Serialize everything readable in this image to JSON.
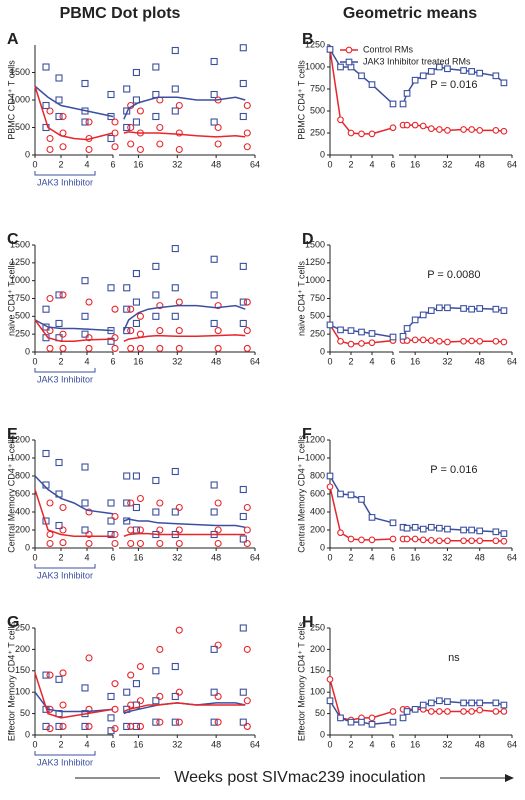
{
  "headers": [
    "PBMC Dot plots",
    "Geometric means"
  ],
  "footer": "Weeks post SIVmac239 inoculation",
  "chart_data": [
    {
      "type": "dot-plot",
      "panel": "A",
      "ylabel": "PBMC CD4⁺ T cells",
      "annotation": "JAK3 Inhibitor",
      "xlim": [
        0,
        64
      ],
      "x_break": [
        6,
        8
      ],
      "xticks": [
        0,
        2,
        4,
        6,
        16,
        32,
        48,
        64
      ],
      "ylim": [
        0,
        2000
      ],
      "yticks": [
        0,
        500,
        1000,
        1500
      ],
      "points_x": [
        1,
        1,
        1,
        2,
        2,
        2,
        4,
        4,
        4,
        6,
        6,
        6,
        12,
        12,
        12,
        16,
        16,
        16,
        24,
        24,
        24,
        32,
        32,
        32,
        48,
        48,
        48,
        60,
        60,
        60
      ],
      "x": [
        0,
        1,
        2,
        3,
        4,
        6,
        8,
        10,
        12,
        16,
        20,
        24,
        32,
        40,
        48,
        56,
        60
      ],
      "series": [
        {
          "color": "#3b4fa0",
          "marker": "square",
          "points": [
            1600,
            900,
            500,
            1400,
            1000,
            700,
            1300,
            800,
            600,
            1100,
            700,
            300,
            1200,
            800,
            500,
            1500,
            1000,
            600,
            1600,
            1100,
            700,
            1900,
            1200,
            800,
            1700,
            1100,
            600,
            1950,
            1300,
            700
          ],
          "values": [
            1250,
            1050,
            900,
            850,
            800,
            700,
            null,
            650,
            850,
            950,
            1000,
            1050,
            1050,
            1000,
            1000,
            1050,
            1000
          ]
        },
        {
          "color": "#e8252b",
          "marker": "circle",
          "points": [
            800,
            300,
            100,
            700,
            400,
            150,
            600,
            300,
            100,
            600,
            400,
            150,
            900,
            500,
            200,
            800,
            400,
            100,
            1000,
            500,
            200,
            900,
            400,
            100,
            1000,
            500,
            200,
            900,
            400,
            150
          ],
          "values": [
            1250,
            500,
            350,
            300,
            280,
            400,
            null,
            400,
            420,
            400,
            400,
            400,
            380,
            350,
            330,
            350,
            330
          ]
        }
      ]
    },
    {
      "type": "line",
      "panel": "B",
      "ylabel": "PBMC CD4⁺ T cells",
      "annotation": "P = 0.016",
      "legend": true,
      "xlim": [
        0,
        64
      ],
      "x_break": [
        6,
        8
      ],
      "xticks": [
        0,
        2,
        4,
        6,
        16,
        32,
        48,
        64
      ],
      "ylim": [
        0,
        1250
      ],
      "yticks": [
        0,
        250,
        500,
        750,
        1000,
        1250
      ],
      "x": [
        0,
        1,
        2,
        3,
        4,
        6,
        8,
        10,
        12,
        16,
        20,
        24,
        28,
        32,
        40,
        44,
        48,
        56,
        60
      ],
      "series": [
        {
          "name": "Control RMs",
          "color": "#e8252b",
          "marker": "circle",
          "values": [
            1200,
            400,
            250,
            240,
            240,
            310,
            null,
            340,
            340,
            340,
            330,
            300,
            290,
            280,
            290,
            290,
            280,
            280,
            270
          ]
        },
        {
          "name": "JAK3 Inhibitor treated RMs",
          "color": "#3b4fa0",
          "marker": "square",
          "values": [
            1200,
            1000,
            1000,
            900,
            800,
            580,
            null,
            580,
            700,
            850,
            900,
            950,
            1000,
            980,
            960,
            950,
            930,
            900,
            820
          ]
        }
      ]
    },
    {
      "type": "dot-plot",
      "panel": "C",
      "ylabel": "naive CD4⁺ T cells",
      "annotation": "JAK3 Inhibitor",
      "xlim": [
        0,
        64
      ],
      "x_break": [
        6,
        8
      ],
      "xticks": [
        0,
        2,
        4,
        6,
        16,
        32,
        48,
        64
      ],
      "ylim": [
        0,
        1500
      ],
      "yticks": [
        0,
        250,
        500,
        750,
        1000,
        1250,
        1500
      ],
      "points_x": [
        1,
        1,
        1,
        2,
        2,
        2,
        4,
        4,
        4,
        6,
        6,
        6,
        12,
        12,
        12,
        16,
        16,
        16,
        24,
        24,
        24,
        32,
        32,
        32,
        48,
        48,
        48,
        60,
        60,
        60
      ],
      "x": [
        0,
        1,
        2,
        3,
        4,
        6,
        8,
        10,
        12,
        16,
        20,
        24,
        32,
        40,
        48,
        56,
        60
      ],
      "series": [
        {
          "color": "#3b4fa0",
          "marker": "square",
          "points": [
            600,
            350,
            200,
            800,
            400,
            200,
            1000,
            500,
            250,
            900,
            300,
            150,
            900,
            600,
            300,
            1100,
            700,
            400,
            1200,
            800,
            500,
            1450,
            900,
            500,
            1300,
            800,
            400,
            1200,
            700,
            400
          ],
          "values": [
            450,
            350,
            330,
            330,
            320,
            300,
            null,
            300,
            450,
            550,
            600,
            620,
            650,
            650,
            620,
            650,
            600
          ]
        },
        {
          "color": "#e8252b",
          "marker": "circle",
          "points": [
            750,
            300,
            50,
            800,
            250,
            50,
            700,
            200,
            50,
            600,
            200,
            50,
            600,
            300,
            50,
            500,
            250,
            50,
            650,
            300,
            50,
            700,
            300,
            50,
            650,
            300,
            50,
            700,
            300,
            50
          ],
          "values": [
            450,
            200,
            150,
            150,
            170,
            180,
            null,
            150,
            180,
            200,
            220,
            230,
            220,
            220,
            230,
            240,
            230
          ]
        }
      ]
    },
    {
      "type": "line",
      "panel": "D",
      "ylabel": "naive CD4⁺ T cells",
      "annotation": "P = 0.0080",
      "xlim": [
        0,
        64
      ],
      "x_break": [
        6,
        8
      ],
      "xticks": [
        0,
        2,
        4,
        6,
        16,
        32,
        48,
        64
      ],
      "ylim": [
        0,
        1500
      ],
      "yticks": [
        0,
        250,
        500,
        750,
        1000,
        1250,
        1500
      ],
      "x": [
        0,
        1,
        2,
        3,
        4,
        6,
        8,
        10,
        12,
        16,
        20,
        24,
        28,
        32,
        40,
        44,
        48,
        56,
        60
      ],
      "series": [
        {
          "color": "#e8252b",
          "marker": "circle",
          "values": [
            380,
            150,
            110,
            120,
            130,
            160,
            null,
            160,
            160,
            170,
            170,
            160,
            150,
            140,
            150,
            155,
            150,
            150,
            140
          ]
        },
        {
          "color": "#3b4fa0",
          "marker": "square",
          "values": [
            380,
            310,
            300,
            280,
            260,
            210,
            null,
            220,
            330,
            450,
            520,
            580,
            620,
            620,
            610,
            600,
            610,
            600,
            580
          ]
        }
      ]
    },
    {
      "type": "dot-plot",
      "panel": "E",
      "ylabel": "Central Memory CD4⁺ T cells",
      "annotation": "JAK3 Inhibitor",
      "xlim": [
        0,
        64
      ],
      "x_break": [
        6,
        8
      ],
      "xticks": [
        0,
        2,
        4,
        6,
        16,
        32,
        48,
        64
      ],
      "ylim": [
        0,
        1200
      ],
      "yticks": [
        0,
        200,
        400,
        600,
        800,
        1000,
        1200
      ],
      "points_x": [
        1,
        1,
        1,
        2,
        2,
        2,
        4,
        4,
        4,
        6,
        6,
        6,
        12,
        12,
        12,
        16,
        16,
        16,
        24,
        24,
        24,
        32,
        32,
        32,
        48,
        48,
        48,
        60,
        60,
        60
      ],
      "x": [
        0,
        1,
        2,
        3,
        4,
        6,
        8,
        10,
        12,
        16,
        20,
        24,
        32,
        40,
        48,
        56,
        60
      ],
      "series": [
        {
          "color": "#3b4fa0",
          "marker": "square",
          "points": [
            1050,
            700,
            300,
            950,
            600,
            250,
            900,
            500,
            200,
            500,
            300,
            150,
            800,
            500,
            300,
            800,
            450,
            200,
            750,
            400,
            150,
            850,
            400,
            150,
            700,
            400,
            150,
            650,
            350,
            100
          ],
          "values": [
            800,
            650,
            550,
            500,
            420,
            380,
            null,
            300,
            320,
            300,
            300,
            280,
            270,
            260,
            250,
            250,
            230
          ]
        },
        {
          "color": "#e8252b",
          "marker": "circle",
          "points": [
            500,
            150,
            50,
            450,
            200,
            60,
            400,
            150,
            50,
            350,
            150,
            50,
            500,
            200,
            50,
            550,
            200,
            50,
            500,
            200,
            50,
            450,
            200,
            50,
            500,
            200,
            50,
            450,
            200,
            50
          ],
          "values": [
            650,
            200,
            150,
            130,
            130,
            130,
            null,
            130,
            150,
            160,
            160,
            150,
            150,
            150,
            150,
            150,
            150
          ]
        }
      ]
    },
    {
      "type": "line",
      "panel": "F",
      "ylabel": "Central Memory CD4⁺ T cells",
      "annotation": "P = 0.016",
      "xlim": [
        0,
        64
      ],
      "x_break": [
        6,
        8
      ],
      "xticks": [
        0,
        2,
        4,
        6,
        16,
        32,
        48,
        64
      ],
      "ylim": [
        0,
        1200
      ],
      "yticks": [
        0,
        200,
        400,
        600,
        800,
        1000,
        1200
      ],
      "x": [
        0,
        1,
        2,
        3,
        4,
        6,
        8,
        10,
        12,
        16,
        20,
        24,
        28,
        32,
        40,
        44,
        48,
        56,
        60
      ],
      "series": [
        {
          "color": "#e8252b",
          "marker": "circle",
          "values": [
            680,
            170,
            100,
            90,
            90,
            100,
            null,
            100,
            100,
            100,
            90,
            85,
            80,
            80,
            80,
            80,
            80,
            80,
            75
          ]
        },
        {
          "color": "#3b4fa0",
          "marker": "square",
          "values": [
            800,
            600,
            590,
            540,
            340,
            280,
            null,
            230,
            220,
            230,
            210,
            230,
            220,
            210,
            200,
            200,
            190,
            180,
            160
          ]
        }
      ]
    },
    {
      "type": "dot-plot",
      "panel": "G",
      "ylabel": "Effector Memory CD4⁺ T cells",
      "annotation": "JAK3 Inhibitor",
      "xlim": [
        0,
        64
      ],
      "x_break": [
        6,
        8
      ],
      "xticks": [
        0,
        2,
        4,
        6,
        16,
        32,
        48,
        64
      ],
      "ylim": [
        0,
        250
      ],
      "yticks": [
        0,
        50,
        100,
        150,
        200,
        250
      ],
      "points_x": [
        1,
        1,
        1,
        2,
        2,
        2,
        4,
        4,
        4,
        6,
        6,
        6,
        12,
        12,
        12,
        16,
        16,
        16,
        24,
        24,
        24,
        32,
        32,
        32,
        48,
        48,
        48,
        60,
        60,
        60
      ],
      "x": [
        0,
        1,
        2,
        3,
        4,
        6,
        8,
        10,
        12,
        16,
        20,
        24,
        32,
        40,
        48,
        56,
        60
      ],
      "series": [
        {
          "color": "#3b4fa0",
          "marker": "square",
          "points": [
            140,
            60,
            20,
            130,
            50,
            20,
            110,
            50,
            20,
            90,
            40,
            10,
            100,
            60,
            20,
            120,
            70,
            20,
            150,
            80,
            30,
            160,
            90,
            30,
            200,
            100,
            30,
            250,
            100,
            30
          ],
          "values": [
            100,
            60,
            55,
            55,
            55,
            60,
            null,
            50,
            55,
            60,
            65,
            70,
            75,
            70,
            75,
            75,
            70
          ]
        },
        {
          "color": "#e8252b",
          "marker": "circle",
          "points": [
            140,
            60,
            15,
            145,
            70,
            20,
            180,
            60,
            20,
            120,
            60,
            15,
            140,
            70,
            20,
            160,
            80,
            20,
            200,
            90,
            30,
            245,
            100,
            30,
            210,
            90,
            30,
            200,
            80,
            20
          ],
          "values": [
            145,
            50,
            40,
            45,
            50,
            60,
            null,
            55,
            60,
            65,
            70,
            70,
            75,
            70,
            70,
            70,
            70
          ]
        }
      ]
    },
    {
      "type": "line",
      "panel": "H",
      "ylabel": "Effector Memory CD4⁺ T cells",
      "annotation": "ns",
      "xlim": [
        0,
        64
      ],
      "x_break": [
        6,
        8
      ],
      "xticks": [
        0,
        2,
        4,
        6,
        16,
        32,
        48,
        64
      ],
      "ylim": [
        0,
        250
      ],
      "yticks": [
        0,
        50,
        100,
        150,
        200,
        250
      ],
      "x": [
        0,
        1,
        2,
        3,
        4,
        6,
        8,
        10,
        12,
        16,
        20,
        24,
        28,
        32,
        40,
        44,
        48,
        56,
        60
      ],
      "series": [
        {
          "color": "#e8252b",
          "marker": "circle",
          "values": [
            130,
            40,
            35,
            40,
            40,
            55,
            null,
            60,
            60,
            60,
            60,
            55,
            55,
            55,
            55,
            55,
            58,
            55,
            55
          ]
        },
        {
          "color": "#3b4fa0",
          "marker": "square",
          "values": [
            80,
            40,
            30,
            30,
            25,
            30,
            null,
            40,
            55,
            60,
            70,
            75,
            80,
            78,
            75,
            75,
            75,
            75,
            70
          ]
        }
      ]
    }
  ]
}
